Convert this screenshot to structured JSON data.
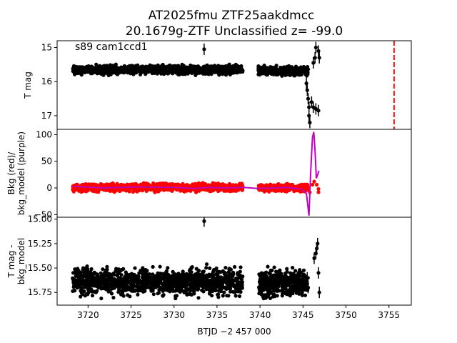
{
  "title_line1": "AT2025fmu  ZTF25aakdmcc",
  "title_line2": "20.1679g-ZTF Unclassified z= -99.0",
  "chart_data": {
    "type": "scatter",
    "x_label": "BTJD −2 457 000",
    "x_range": [
      3716.4,
      3757.6
    ],
    "x_ticks": [
      3720,
      3725,
      3730,
      3735,
      3740,
      3745,
      3750,
      3755
    ],
    "x_tick_labels": [
      "3720",
      "3725",
      "3730",
      "3735",
      "3740",
      "3745",
      "3750",
      "3755"
    ],
    "panels": [
      {
        "id": "tmag",
        "ylabel": "T mag",
        "inverted": true,
        "y_range": [
          17.4,
          14.8
        ],
        "y_ticks": [
          15,
          16,
          17
        ],
        "y_tick_labels": [
          "15",
          "16",
          "17"
        ],
        "annotation": "s89 cam1ccd1",
        "vline": {
          "x": 3755.6,
          "color": "#ff0000",
          "style": "dashed"
        },
        "series": [
          {
            "name": "",
            "color": "#000000",
            "bands": [
              {
                "x0": 3718.2,
                "x1": 3738.0,
                "y": 15.65,
                "spread": 0.09
              },
              {
                "x0": 3739.8,
                "x1": 3745.6,
                "y": 15.68,
                "spread": 0.09
              }
            ],
            "points": [
              {
                "x": 3733.5,
                "y": 15.05
              },
              {
                "x": 3745.4,
                "y": 16.05
              },
              {
                "x": 3745.5,
                "y": 16.25
              },
              {
                "x": 3745.6,
                "y": 16.5
              },
              {
                "x": 3745.7,
                "y": 16.75
              },
              {
                "x": 3745.7,
                "y": 17.0
              },
              {
                "x": 3745.8,
                "y": 17.2
              },
              {
                "x": 3746.0,
                "y": 16.6
              },
              {
                "x": 3746.2,
                "y": 16.75
              },
              {
                "x": 3746.5,
                "y": 16.8
              },
              {
                "x": 3746.8,
                "y": 16.85
              },
              {
                "x": 3746.2,
                "y": 15.45
              },
              {
                "x": 3746.4,
                "y": 15.3
              },
              {
                "x": 3746.5,
                "y": 15.0
              },
              {
                "x": 3746.8,
                "y": 15.1
              },
              {
                "x": 3746.9,
                "y": 15.3
              }
            ]
          }
        ]
      },
      {
        "id": "bkg",
        "ylabel": "Bkg (red)/\nbkg_model (purple)",
        "y_range": [
          -55,
          110
        ],
        "y_ticks": [
          -50,
          0,
          50,
          100
        ],
        "y_tick_labels": [
          "−50",
          "0",
          "50",
          "100"
        ],
        "series": [
          {
            "name": "Bkg",
            "color": "#ff0000",
            "bands": [
              {
                "x0": 3718.2,
                "x1": 3738.0,
                "y": 1,
                "spread": 5
              },
              {
                "x0": 3739.8,
                "x1": 3745.6,
                "y": 0,
                "spread": 5
              }
            ],
            "points": [
              {
                "x": 3745.8,
                "y": -8
              },
              {
                "x": 3746.1,
                "y": 6
              },
              {
                "x": 3746.3,
                "y": 12
              },
              {
                "x": 3746.6,
                "y": 6
              },
              {
                "x": 3746.8,
                "y": -2
              },
              {
                "x": 3746.8,
                "y": -8
              }
            ]
          },
          {
            "name": "bkg_model",
            "color": "#bf00bf",
            "line": [
              [
                3718.2,
                3
              ],
              [
                3722,
                0
              ],
              [
                3726,
                2
              ],
              [
                3730,
                1
              ],
              [
                3732.5,
                -1
              ],
              [
                3734,
                1
              ],
              [
                3736,
                0
              ],
              [
                3738,
                1
              ],
              [
                3739.8,
                -1
              ],
              [
                3743,
                1
              ],
              [
                3744.8,
                -2
              ],
              [
                3745.4,
                -10
              ],
              [
                3745.7,
                -52
              ],
              [
                3745.9,
                30
              ],
              [
                3746.1,
                95
              ],
              [
                3746.25,
                105
              ],
              [
                3746.4,
                70
              ],
              [
                3746.55,
                18
              ],
              [
                3746.7,
                25
              ],
              [
                3746.85,
                32
              ]
            ]
          }
        ]
      },
      {
        "id": "tmag_bkg",
        "ylabel": "T mag -\nbkg_model",
        "inverted": true,
        "y_range": [
          15.88,
          14.98
        ],
        "y_ticks": [
          15.0,
          15.25,
          15.5,
          15.75
        ],
        "y_tick_labels": [
          "15.00",
          "15.25",
          "15.50",
          "15.75"
        ],
        "series": [
          {
            "name": "",
            "color": "#000000",
            "bands": [
              {
                "x0": 3718.2,
                "x1": 3738.0,
                "y": 15.64,
                "spread": 0.1
              },
              {
                "x0": 3739.8,
                "x1": 3745.6,
                "y": 15.66,
                "spread": 0.1
              }
            ],
            "points": [
              {
                "x": 3733.5,
                "y": 15.02
              },
              {
                "x": 3745.5,
                "y": 15.6
              },
              {
                "x": 3745.6,
                "y": 15.7
              },
              {
                "x": 3746.3,
                "y": 15.4
              },
              {
                "x": 3746.5,
                "y": 15.35
              },
              {
                "x": 3746.6,
                "y": 15.3
              },
              {
                "x": 3746.7,
                "y": 15.25
              },
              {
                "x": 3746.8,
                "y": 15.55
              },
              {
                "x": 3746.9,
                "y": 15.75
              }
            ]
          }
        ]
      }
    ]
  }
}
